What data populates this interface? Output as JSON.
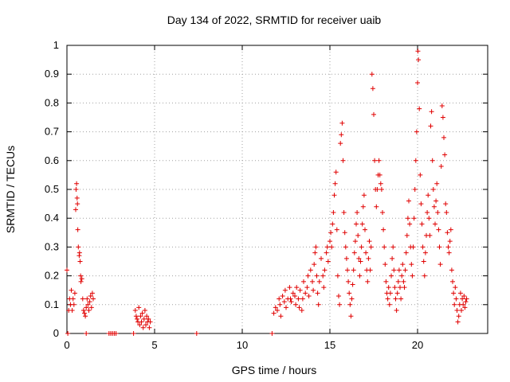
{
  "chart_data": {
    "type": "scatter",
    "title": "Day 134 of 2022, SRMTID for receiver uaib",
    "xlabel": "GPS time / hours",
    "ylabel": "SRMTID / TECUs",
    "xlim": [
      0,
      24
    ],
    "ylim": [
      0,
      1
    ],
    "xticks": [
      {
        "value": 0,
        "label": "0"
      },
      {
        "value": 5,
        "label": "5"
      },
      {
        "value": 10,
        "label": "10"
      },
      {
        "value": 15,
        "label": "15"
      },
      {
        "value": 20,
        "label": "20"
      }
    ],
    "yticks": [
      {
        "value": 0,
        "label": "0"
      },
      {
        "value": 0.1,
        "label": "0.1"
      },
      {
        "value": 0.2,
        "label": "0.2"
      },
      {
        "value": 0.3,
        "label": "0.3"
      },
      {
        "value": 0.4,
        "label": "0.4"
      },
      {
        "value": 0.5,
        "label": "0.5"
      },
      {
        "value": 0.6,
        "label": "0.6"
      },
      {
        "value": 0.7,
        "label": "0.7"
      },
      {
        "value": 0.8,
        "label": "0.8"
      },
      {
        "value": 0.9,
        "label": "0.9"
      },
      {
        "value": 1,
        "label": "1"
      }
    ],
    "grid": true,
    "marker": "+",
    "color": "#e00000",
    "series": [
      {
        "name": "SRMTID",
        "points": [
          [
            0.0,
            0.22
          ],
          [
            0.05,
            0.0
          ],
          [
            0.1,
            0.08
          ],
          [
            0.15,
            0.12
          ],
          [
            0.2,
            0.1
          ],
          [
            0.25,
            0.15
          ],
          [
            0.3,
            0.08
          ],
          [
            0.35,
            0.12
          ],
          [
            0.4,
            0.1
          ],
          [
            0.45,
            0.14
          ],
          [
            0.5,
            0.43
          ],
          [
            0.52,
            0.5
          ],
          [
            0.55,
            0.52
          ],
          [
            0.58,
            0.47
          ],
          [
            0.6,
            0.45
          ],
          [
            0.62,
            0.36
          ],
          [
            0.65,
            0.3
          ],
          [
            0.7,
            0.27
          ],
          [
            0.72,
            0.28
          ],
          [
            0.75,
            0.25
          ],
          [
            0.78,
            0.2
          ],
          [
            0.8,
            0.18
          ],
          [
            0.85,
            0.19
          ],
          [
            0.9,
            0.12
          ],
          [
            0.95,
            0.08
          ],
          [
            1.0,
            0.07
          ],
          [
            1.05,
            0.06
          ],
          [
            1.1,
            0.0
          ],
          [
            1.1,
            0.09
          ],
          [
            1.15,
            0.12
          ],
          [
            1.2,
            0.1
          ],
          [
            1.25,
            0.08
          ],
          [
            1.3,
            0.11
          ],
          [
            1.35,
            0.13
          ],
          [
            1.4,
            0.09
          ],
          [
            1.45,
            0.14
          ],
          [
            1.5,
            0.12
          ],
          [
            2.4,
            0.0
          ],
          [
            2.5,
            0.0
          ],
          [
            2.6,
            0.0
          ],
          [
            2.7,
            0.0
          ],
          [
            2.8,
            0.0
          ],
          [
            3.8,
            0.0
          ],
          [
            3.9,
            0.08
          ],
          [
            3.95,
            0.06
          ],
          [
            4.0,
            0.05
          ],
          [
            4.05,
            0.04
          ],
          [
            4.1,
            0.09
          ],
          [
            4.15,
            0.03
          ],
          [
            4.2,
            0.06
          ],
          [
            4.25,
            0.04
          ],
          [
            4.3,
            0.07
          ],
          [
            4.35,
            0.02
          ],
          [
            4.4,
            0.05
          ],
          [
            4.45,
            0.08
          ],
          [
            4.5,
            0.03
          ],
          [
            4.55,
            0.06
          ],
          [
            4.6,
            0.04
          ],
          [
            4.65,
            0.05
          ],
          [
            4.7,
            0.02
          ],
          [
            4.75,
            0.04
          ],
          [
            7.4,
            0.0
          ],
          [
            11.7,
            0.0
          ],
          [
            11.8,
            0.07
          ],
          [
            11.9,
            0.09
          ],
          [
            12.0,
            0.08
          ],
          [
            12.1,
            0.12
          ],
          [
            12.15,
            0.1
          ],
          [
            12.2,
            0.06
          ],
          [
            12.3,
            0.13
          ],
          [
            12.4,
            0.11
          ],
          [
            12.45,
            0.15
          ],
          [
            12.5,
            0.09
          ],
          [
            12.6,
            0.12
          ],
          [
            12.7,
            0.16
          ],
          [
            12.75,
            0.12
          ],
          [
            12.8,
            0.11
          ],
          [
            12.9,
            0.14
          ],
          [
            13.0,
            0.13
          ],
          [
            13.05,
            0.1
          ],
          [
            13.1,
            0.16
          ],
          [
            13.2,
            0.12
          ],
          [
            13.25,
            0.09
          ],
          [
            13.3,
            0.15
          ],
          [
            13.4,
            0.08
          ],
          [
            13.45,
            0.12
          ],
          [
            13.5,
            0.18
          ],
          [
            13.6,
            0.14
          ],
          [
            13.7,
            0.16
          ],
          [
            13.75,
            0.2
          ],
          [
            13.8,
            0.13
          ],
          [
            13.9,
            0.22
          ],
          [
            14.0,
            0.18
          ],
          [
            14.05,
            0.15
          ],
          [
            14.1,
            0.24
          ],
          [
            14.15,
            0.28
          ],
          [
            14.2,
            0.3
          ],
          [
            14.25,
            0.2
          ],
          [
            14.3,
            0.14
          ],
          [
            14.35,
            0.1
          ],
          [
            14.4,
            0.18
          ],
          [
            14.5,
            0.26
          ],
          [
            14.6,
            0.2
          ],
          [
            14.65,
            0.16
          ],
          [
            14.7,
            0.22
          ],
          [
            14.8,
            0.28
          ],
          [
            14.85,
            0.3
          ],
          [
            14.9,
            0.25
          ],
          [
            15.0,
            0.32
          ],
          [
            15.05,
            0.35
          ],
          [
            15.1,
            0.3
          ],
          [
            15.15,
            0.38
          ],
          [
            15.2,
            0.42
          ],
          [
            15.25,
            0.48
          ],
          [
            15.3,
            0.52
          ],
          [
            15.35,
            0.56
          ],
          [
            15.4,
            0.36
          ],
          [
            15.45,
            0.2
          ],
          [
            15.5,
            0.13
          ],
          [
            15.55,
            0.1
          ],
          [
            15.6,
            0.66
          ],
          [
            15.65,
            0.69
          ],
          [
            15.7,
            0.73
          ],
          [
            15.75,
            0.6
          ],
          [
            15.8,
            0.42
          ],
          [
            15.85,
            0.35
          ],
          [
            15.9,
            0.3
          ],
          [
            15.95,
            0.26
          ],
          [
            16.0,
            0.22
          ],
          [
            16.05,
            0.18
          ],
          [
            16.1,
            0.14
          ],
          [
            16.15,
            0.1
          ],
          [
            16.2,
            0.06
          ],
          [
            16.25,
            0.12
          ],
          [
            16.3,
            0.17
          ],
          [
            16.35,
            0.22
          ],
          [
            16.4,
            0.28
          ],
          [
            16.45,
            0.32
          ],
          [
            16.5,
            0.38
          ],
          [
            16.55,
            0.42
          ],
          [
            16.6,
            0.34
          ],
          [
            16.65,
            0.26
          ],
          [
            16.7,
            0.2
          ],
          [
            16.75,
            0.25
          ],
          [
            16.8,
            0.3
          ],
          [
            16.85,
            0.38
          ],
          [
            16.9,
            0.44
          ],
          [
            16.95,
            0.48
          ],
          [
            17.0,
            0.36
          ],
          [
            17.05,
            0.28
          ],
          [
            17.1,
            0.22
          ],
          [
            17.15,
            0.18
          ],
          [
            17.2,
            0.26
          ],
          [
            17.25,
            0.32
          ],
          [
            17.3,
            0.22
          ],
          [
            17.35,
            0.3
          ],
          [
            17.4,
            0.9
          ],
          [
            17.45,
            0.85
          ],
          [
            17.5,
            0.76
          ],
          [
            17.55,
            0.6
          ],
          [
            17.6,
            0.5
          ],
          [
            17.65,
            0.44
          ],
          [
            17.7,
            0.5
          ],
          [
            17.75,
            0.55
          ],
          [
            17.8,
            0.6
          ],
          [
            17.85,
            0.55
          ],
          [
            17.9,
            0.52
          ],
          [
            17.95,
            0.5
          ],
          [
            18.0,
            0.42
          ],
          [
            18.05,
            0.36
          ],
          [
            18.1,
            0.3
          ],
          [
            18.15,
            0.24
          ],
          [
            18.2,
            0.18
          ],
          [
            18.25,
            0.14
          ],
          [
            18.3,
            0.12
          ],
          [
            18.35,
            0.16
          ],
          [
            18.4,
            0.1
          ],
          [
            18.45,
            0.14
          ],
          [
            18.5,
            0.2
          ],
          [
            18.55,
            0.26
          ],
          [
            18.6,
            0.3
          ],
          [
            18.65,
            0.22
          ],
          [
            18.7,
            0.16
          ],
          [
            18.75,
            0.12
          ],
          [
            18.8,
            0.08
          ],
          [
            18.85,
            0.14
          ],
          [
            18.9,
            0.18
          ],
          [
            18.95,
            0.22
          ],
          [
            19.0,
            0.16
          ],
          [
            19.05,
            0.12
          ],
          [
            19.1,
            0.2
          ],
          [
            19.15,
            0.24
          ],
          [
            19.2,
            0.18
          ],
          [
            19.25,
            0.16
          ],
          [
            19.3,
            0.22
          ],
          [
            19.35,
            0.28
          ],
          [
            19.4,
            0.34
          ],
          [
            19.45,
            0.4
          ],
          [
            19.5,
            0.46
          ],
          [
            19.55,
            0.38
          ],
          [
            19.6,
            0.3
          ],
          [
            19.65,
            0.24
          ],
          [
            19.7,
            0.2
          ],
          [
            19.75,
            0.3
          ],
          [
            19.8,
            0.4
          ],
          [
            19.85,
            0.5
          ],
          [
            19.9,
            0.6
          ],
          [
            19.95,
            0.7
          ],
          [
            20.0,
            0.87
          ],
          [
            20.02,
            0.98
          ],
          [
            20.05,
            0.95
          ],
          [
            20.1,
            0.78
          ],
          [
            20.15,
            0.55
          ],
          [
            20.2,
            0.45
          ],
          [
            20.25,
            0.38
          ],
          [
            20.3,
            0.3
          ],
          [
            20.35,
            0.25
          ],
          [
            20.4,
            0.2
          ],
          [
            20.45,
            0.28
          ],
          [
            20.5,
            0.34
          ],
          [
            20.55,
            0.42
          ],
          [
            20.6,
            0.48
          ],
          [
            20.65,
            0.4
          ],
          [
            20.7,
            0.34
          ],
          [
            20.75,
            0.72
          ],
          [
            20.8,
            0.77
          ],
          [
            20.85,
            0.6
          ],
          [
            20.9,
            0.5
          ],
          [
            20.95,
            0.44
          ],
          [
            21.0,
            0.38
          ],
          [
            21.05,
            0.46
          ],
          [
            21.1,
            0.52
          ],
          [
            21.15,
            0.42
          ],
          [
            21.2,
            0.36
          ],
          [
            21.25,
            0.3
          ],
          [
            21.3,
            0.24
          ],
          [
            21.35,
            0.58
          ],
          [
            21.4,
            0.79
          ],
          [
            21.45,
            0.75
          ],
          [
            21.5,
            0.68
          ],
          [
            21.55,
            0.62
          ],
          [
            21.6,
            0.45
          ],
          [
            21.65,
            0.42
          ],
          [
            21.7,
            0.35
          ],
          [
            21.75,
            0.3
          ],
          [
            21.8,
            0.28
          ],
          [
            21.85,
            0.32
          ],
          [
            21.9,
            0.36
          ],
          [
            21.95,
            0.22
          ],
          [
            22.0,
            0.18
          ],
          [
            22.05,
            0.14
          ],
          [
            22.1,
            0.1
          ],
          [
            22.15,
            0.16
          ],
          [
            22.2,
            0.12
          ],
          [
            22.25,
            0.08
          ],
          [
            22.3,
            0.04
          ],
          [
            22.35,
            0.06
          ],
          [
            22.4,
            0.1
          ],
          [
            22.45,
            0.14
          ],
          [
            22.5,
            0.08
          ],
          [
            22.55,
            0.12
          ],
          [
            22.6,
            0.1
          ],
          [
            22.65,
            0.13
          ],
          [
            22.7,
            0.09
          ],
          [
            22.75,
            0.11
          ],
          [
            22.8,
            0.12
          ]
        ]
      }
    ]
  }
}
